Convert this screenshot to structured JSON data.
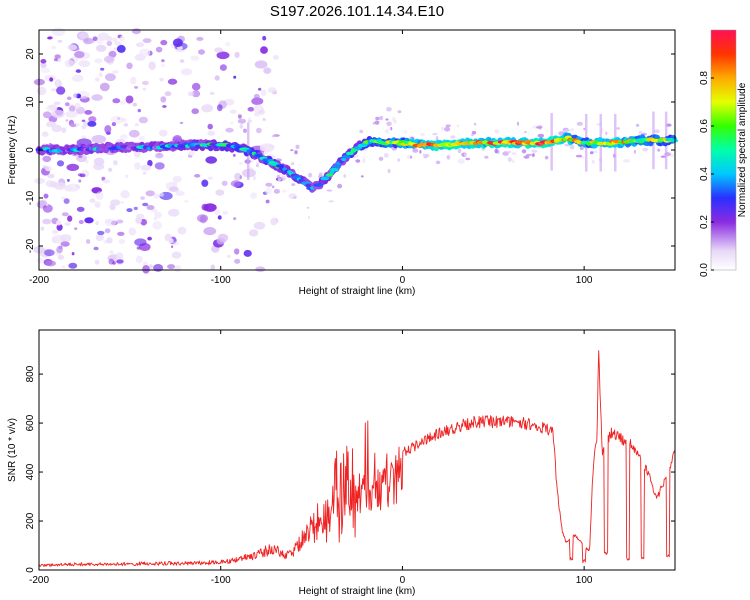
{
  "title": "S197.2026.101.14.34.E10",
  "chart_data": [
    {
      "type": "heatmap",
      "name": "spectrogram",
      "xlabel": "Height of straight line (km)",
      "ylabel": "Frequency (Hz)",
      "xlim": [
        -200,
        150
      ],
      "ylim": [
        -25,
        25
      ],
      "xticks": [
        -200,
        -100,
        0,
        100
      ],
      "yticks": [
        -20,
        -10,
        0,
        10,
        20
      ],
      "colorbar": {
        "label": "Normalized spectral amplitude",
        "ticks": [
          "0.0",
          "0.2",
          "0.4",
          "0.6",
          "0.8"
        ],
        "tick_values": [
          0.0,
          0.2,
          0.4,
          0.6,
          0.8
        ],
        "range": [
          0,
          1
        ]
      },
      "ridge": {
        "x": [
          -200,
          -180,
          -160,
          -140,
          -120,
          -100,
          -90,
          -80,
          -70,
          -60,
          -55,
          -50,
          -45,
          -40,
          -35,
          -30,
          -25,
          -20,
          -15,
          -10,
          0,
          10,
          20,
          40,
          60,
          80,
          90,
          100,
          110,
          120,
          130,
          140,
          150
        ],
        "frequency": [
          0,
          0,
          0.5,
          0.5,
          1,
          1,
          0.5,
          -1,
          -3,
          -5,
          -6.5,
          -8,
          -7,
          -5,
          -3,
          -1,
          0.5,
          1.5,
          2,
          1.5,
          1.5,
          1,
          1,
          1.5,
          1.5,
          1.5,
          2.5,
          1.5,
          1.5,
          1.5,
          2,
          2,
          2
        ],
        "amplitude": [
          0.25,
          0.3,
          0.3,
          0.3,
          0.35,
          0.4,
          0.45,
          0.4,
          0.4,
          0.35,
          0.35,
          0.3,
          0.35,
          0.35,
          0.4,
          0.4,
          0.45,
          0.5,
          0.55,
          0.55,
          0.6,
          0.75,
          0.8,
          0.75,
          0.8,
          0.85,
          0.75,
          0.6,
          0.7,
          0.75,
          0.6,
          0.6,
          0.55
        ]
      },
      "noise_region_x": [
        -200,
        -80
      ],
      "noise_region_y": [
        -25,
        25
      ]
    },
    {
      "type": "line",
      "name": "snr",
      "xlabel": "Height of straight line (km)",
      "ylabel": "SNR (10 * v/v)",
      "xlim": [
        -200,
        150
      ],
      "ylim": [
        0,
        980
      ],
      "xticks": [
        -200,
        -100,
        0,
        100
      ],
      "yticks": [
        0,
        200,
        400,
        600,
        800
      ],
      "color": "#ee2222",
      "envelope": {
        "x": [
          -200,
          -180,
          -160,
          -140,
          -120,
          -100,
          -90,
          -80,
          -75,
          -70,
          -65,
          -60,
          -50,
          -40,
          -30,
          -20,
          -10,
          0,
          10,
          20,
          30,
          40,
          50,
          60,
          70,
          80,
          83,
          85,
          88,
          90,
          95,
          100,
          103,
          105,
          107,
          108,
          110,
          115,
          120,
          125,
          130,
          135,
          140,
          145,
          150
        ],
        "y": [
          25,
          30,
          30,
          35,
          35,
          40,
          60,
          80,
          100,
          120,
          70,
          100,
          220,
          300,
          380,
          420,
          460,
          500,
          540,
          580,
          610,
          630,
          630,
          630,
          620,
          600,
          580,
          350,
          160,
          120,
          150,
          100,
          80,
          450,
          550,
          920,
          500,
          580,
          560,
          540,
          480,
          420,
          300,
          400,
          500
        ]
      },
      "dropouts": [
        {
          "x": 93,
          "y": 40
        },
        {
          "x": 100,
          "y": 30
        },
        {
          "x": 112,
          "y": 60
        },
        {
          "x": 124,
          "y": 40
        },
        {
          "x": 132,
          "y": 40
        },
        {
          "x": 146,
          "y": 50
        }
      ]
    }
  ]
}
